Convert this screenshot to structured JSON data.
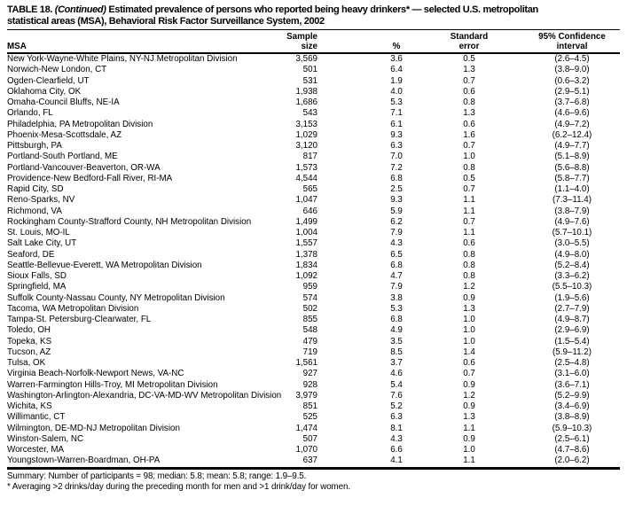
{
  "title": {
    "label": "TABLE 18.",
    "continued": "(Continued)",
    "line1_rest": "Estimated prevalence of persons who reported being heavy drinkers* — selected U.S. metropolitan",
    "line2": "statistical areas (MSA), Behavioral Risk Factor Surveillance System, 2002"
  },
  "table": {
    "headers": {
      "msa": "MSA",
      "sample_line1": "Sample",
      "sample_line2": "size",
      "pct": "%",
      "se_line1": "Standard",
      "se_line2": "error",
      "ci_line1": "95% Confidence",
      "ci_line2": "interval"
    },
    "rows": [
      [
        "New York-Wayne-White Plains, NY-NJ Metropolitan Division",
        "3,569",
        "3.6",
        "0.5",
        "(2.6–4.5)"
      ],
      [
        "Norwich-New London, CT",
        "501",
        "6.4",
        "1.3",
        "(3.8–9.0)"
      ],
      [
        "Ogden-Clearfield, UT",
        "531",
        "1.9",
        "0.7",
        "(0.6–3.2)"
      ],
      [
        "Oklahoma City, OK",
        "1,938",
        "4.0",
        "0.6",
        "(2.9–5.1)"
      ],
      [
        "Omaha-Council Bluffs, NE-IA",
        "1,686",
        "5.3",
        "0.8",
        "(3.7–6.8)"
      ],
      [
        "Orlando, FL",
        "543",
        "7.1",
        "1.3",
        "(4.6–9.6)"
      ],
      [
        "Philadelphia, PA Metropolitan Division",
        "3,153",
        "6.1",
        "0.6",
        "(4.9–7.2)"
      ],
      [
        "Phoenix-Mesa-Scottsdale, AZ",
        "1,029",
        "9.3",
        "1.6",
        "(6.2–12.4)"
      ],
      [
        "Pittsburgh, PA",
        "3,120",
        "6.3",
        "0.7",
        "(4.9–7.7)"
      ],
      [
        "Portland-South Portland, ME",
        "817",
        "7.0",
        "1.0",
        "(5.1–8.9)"
      ],
      [
        "Portland-Vancouver-Beaverton, OR-WA",
        "1,573",
        "7.2",
        "0.8",
        "(5.6–8.8)"
      ],
      [
        "Providence-New Bedford-Fall River, RI-MA",
        "4,544",
        "6.8",
        "0.5",
        "(5.8–7.7)"
      ],
      [
        "Rapid City, SD",
        "565",
        "2.5",
        "0.7",
        "(1.1–4.0)"
      ],
      [
        "Reno-Sparks, NV",
        "1,047",
        "9.3",
        "1.1",
        "(7.3–11.4)"
      ],
      [
        "Richmond, VA",
        "646",
        "5.9",
        "1.1",
        "(3.8–7.9)"
      ],
      [
        "Rockingham County-Strafford County, NH Metropolitan Division",
        "1,499",
        "6.2",
        "0.7",
        "(4.9–7.6)"
      ],
      [
        "St. Louis, MO-IL",
        "1,004",
        "7.9",
        "1.1",
        "(5.7–10.1)"
      ],
      [
        "Salt Lake City, UT",
        "1,557",
        "4.3",
        "0.6",
        "(3.0–5.5)"
      ],
      [
        "Seaford, DE",
        "1,378",
        "6.5",
        "0.8",
        "(4.9–8.0)"
      ],
      [
        "Seattle-Bellevue-Everett, WA Metropolitan Division",
        "1,834",
        "6.8",
        "0.8",
        "(5.2–8.4)"
      ],
      [
        "Sioux Falls, SD",
        "1,092",
        "4.7",
        "0.8",
        "(3.3–6.2)"
      ],
      [
        "Springfield, MA",
        "959",
        "7.9",
        "1.2",
        "(5.5–10.3)"
      ],
      [
        "Suffolk County-Nassau County, NY Metropolitan Division",
        "574",
        "3.8",
        "0.9",
        "(1.9–5.6)"
      ],
      [
        "Tacoma, WA Metropolitan Division",
        "502",
        "5.3",
        "1.3",
        "(2.7–7.9)"
      ],
      [
        "Tampa-St. Petersburg-Clearwater, FL",
        "855",
        "6.8",
        "1.0",
        "(4.9–8.7)"
      ],
      [
        "Toledo, OH",
        "548",
        "4.9",
        "1.0",
        "(2.9–6.9)"
      ],
      [
        "Topeka, KS",
        "479",
        "3.5",
        "1.0",
        "(1.5–5.4)"
      ],
      [
        "Tucson, AZ",
        "719",
        "8.5",
        "1.4",
        "(5.9–11.2)"
      ],
      [
        "Tulsa, OK",
        "1,561",
        "3.7",
        "0.6",
        "(2.5–4.8)"
      ],
      [
        "Virginia Beach-Norfolk-Newport News, VA-NC",
        "927",
        "4.6",
        "0.7",
        "(3.1–6.0)"
      ],
      [
        "Warren-Farmington Hills-Troy, MI Metropolitan Division",
        "928",
        "5.4",
        "0.9",
        "(3.6–7.1)"
      ],
      [
        "Washington-Arlington-Alexandria, DC-VA-MD-WV Metropolitan Division",
        "3,979",
        "7.6",
        "1.2",
        "(5.2–9.9)"
      ],
      [
        "Wichita, KS",
        "851",
        "5.2",
        "0.9",
        "(3.4–6.9)"
      ],
      [
        "Willimantic, CT",
        "525",
        "6.3",
        "1.3",
        "(3.8–8.9)"
      ],
      [
        "Wilmington, DE-MD-NJ Metropolitan Division",
        "1,474",
        "8.1",
        "1.1",
        "(5.9–10.3)"
      ],
      [
        "Winston-Salem, NC",
        "507",
        "4.3",
        "0.9",
        "(2.5–6.1)"
      ],
      [
        "Worcester, MA",
        "1,070",
        "6.6",
        "1.0",
        "(4.7–8.6)"
      ],
      [
        "Youngstown-Warren-Boardman, OH-PA",
        "637",
        "4.1",
        "1.1",
        "(2.0–6.2)"
      ]
    ],
    "cell_names": [
      "msa-cell",
      "sample-size-cell",
      "percent-cell",
      "standard-error-cell",
      "confidence-interval-cell"
    ]
  },
  "footer": {
    "summary": "Summary: Number of participants = 98; median: 5.8; mean: 5.8; range: 1.9–9.5.",
    "footnote": "* Averaging >2 drinks/day during the preceding month for men and >1 drink/day for women."
  }
}
